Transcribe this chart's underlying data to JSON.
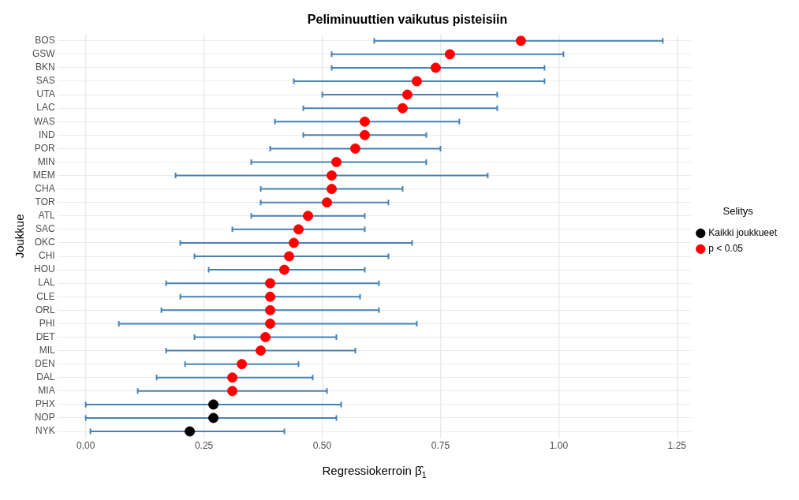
{
  "chart_data": {
    "type": "scatter",
    "orientation": "horizontal",
    "title": "Peliminuuttien vaikutus pisteisiin",
    "xlabel": "Regressiokerroin β̂$_{1}$",
    "ylabel": "Joukkue",
    "legend_title": "Selitys",
    "legend": "right",
    "grid": true,
    "marker": "circle",
    "categories": [
      "BOS",
      "GSW",
      "BKN",
      "SAS",
      "UTA",
      "LAC",
      "WAS",
      "IND",
      "POR",
      "MIN",
      "MEM",
      "CHA",
      "TOR",
      "ATL",
      "SAC",
      "OKC",
      "CHI",
      "HOU",
      "LAL",
      "CLE",
      "ORL",
      "PHI",
      "DET",
      "MIL",
      "DEN",
      "DAL",
      "MIA",
      "PHX",
      "NOP",
      "NYK"
    ],
    "xlim": [
      -0.06,
      1.28
    ],
    "xticks": [
      {
        "value": 0,
        "label": "0.00"
      },
      {
        "value": 0.25,
        "label": "0.25"
      },
      {
        "value": 0.5,
        "label": "0.50"
      },
      {
        "value": 0.75,
        "label": "0.75"
      },
      {
        "value": 1,
        "label": "1.00"
      },
      {
        "value": 1.25,
        "label": "1.25"
      }
    ],
    "series": [
      {
        "name": "Kaikki joukkueet",
        "color": "#000000",
        "values": [
          null,
          null,
          null,
          null,
          null,
          null,
          null,
          null,
          null,
          null,
          null,
          null,
          null,
          null,
          null,
          null,
          null,
          null,
          null,
          null,
          null,
          null,
          null,
          null,
          null,
          null,
          null,
          0.27,
          0.27,
          0.22
        ],
        "errors": [
          null,
          null,
          null,
          null,
          null,
          null,
          null,
          null,
          null,
          null,
          null,
          null,
          null,
          null,
          null,
          null,
          null,
          null,
          null,
          null,
          null,
          null,
          null,
          null,
          null,
          null,
          null,
          [
            0.0,
            0.54
          ],
          [
            0.0,
            0.53
          ],
          [
            0.01,
            0.42
          ]
        ]
      },
      {
        "name": "p < 0.05",
        "color": "#ff0000",
        "values": [
          0.92,
          0.77,
          0.74,
          0.7,
          0.68,
          0.67,
          0.59,
          0.59,
          0.57,
          0.53,
          0.52,
          0.52,
          0.51,
          0.47,
          0.45,
          0.44,
          0.43,
          0.42,
          0.39,
          0.39,
          0.39,
          0.39,
          0.38,
          0.37,
          0.33,
          0.31,
          0.31,
          null,
          null,
          null
        ],
        "errors": [
          [
            0.61,
            1.22
          ],
          [
            0.52,
            1.01
          ],
          [
            0.52,
            0.97
          ],
          [
            0.44,
            0.97
          ],
          [
            0.5,
            0.87
          ],
          [
            0.46,
            0.87
          ],
          [
            0.4,
            0.79
          ],
          [
            0.46,
            0.72
          ],
          [
            0.39,
            0.75
          ],
          [
            0.35,
            0.72
          ],
          [
            0.19,
            0.85
          ],
          [
            0.37,
            0.67
          ],
          [
            0.37,
            0.64
          ],
          [
            0.35,
            0.59
          ],
          [
            0.31,
            0.59
          ],
          [
            0.2,
            0.69
          ],
          [
            0.23,
            0.64
          ],
          [
            0.26,
            0.59
          ],
          [
            0.17,
            0.62
          ],
          [
            0.2,
            0.58
          ],
          [
            0.16,
            0.62
          ],
          [
            0.07,
            0.7
          ],
          [
            0.23,
            0.53
          ],
          [
            0.17,
            0.57
          ],
          [
            0.21,
            0.45
          ],
          [
            0.15,
            0.48
          ],
          [
            0.11,
            0.51
          ],
          null,
          null,
          null
        ]
      }
    ]
  }
}
